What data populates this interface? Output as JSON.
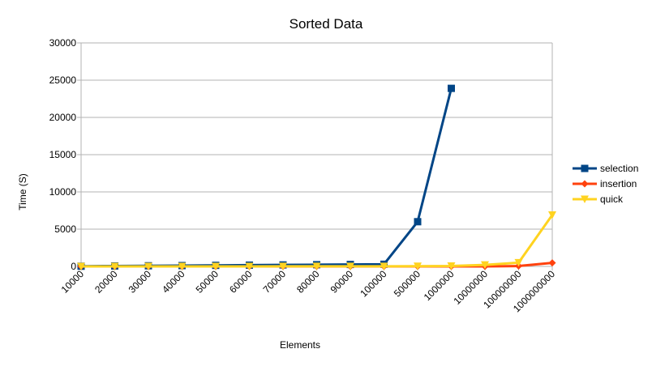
{
  "chart_data": {
    "type": "line",
    "title": "Sorted Data",
    "xlabel": "Elements",
    "ylabel": "Time (S)",
    "categories": [
      "10000",
      "20000",
      "30000",
      "40000",
      "50000",
      "60000",
      "70000",
      "80000",
      "90000",
      "100000",
      "500000",
      "1000000",
      "10000000",
      "100000000",
      "1000000000"
    ],
    "ylim": [
      0,
      30000
    ],
    "yticks": [
      "0",
      "5000",
      "10000",
      "15000",
      "20000",
      "25000",
      "30000"
    ],
    "grid": true,
    "legend_position": "right",
    "series": [
      {
        "name": "selection",
        "color": "#004586",
        "marker": "square",
        "values": [
          25,
          60,
          85,
          110,
          140,
          170,
          200,
          230,
          260,
          290,
          6000,
          23900,
          null,
          null,
          null
        ]
      },
      {
        "name": "insertion",
        "color": "#ff420e",
        "marker": "diamond",
        "values": [
          0,
          0,
          0,
          0,
          0,
          0,
          0,
          0,
          0,
          0,
          0,
          1,
          5,
          50,
          480
        ]
      },
      {
        "name": "quick",
        "color": "#ffd320",
        "marker": "triangle-down",
        "values": [
          1,
          2,
          3,
          4,
          5,
          6,
          7,
          8,
          9,
          10,
          30,
          60,
          200,
          500,
          6900
        ]
      }
    ]
  }
}
